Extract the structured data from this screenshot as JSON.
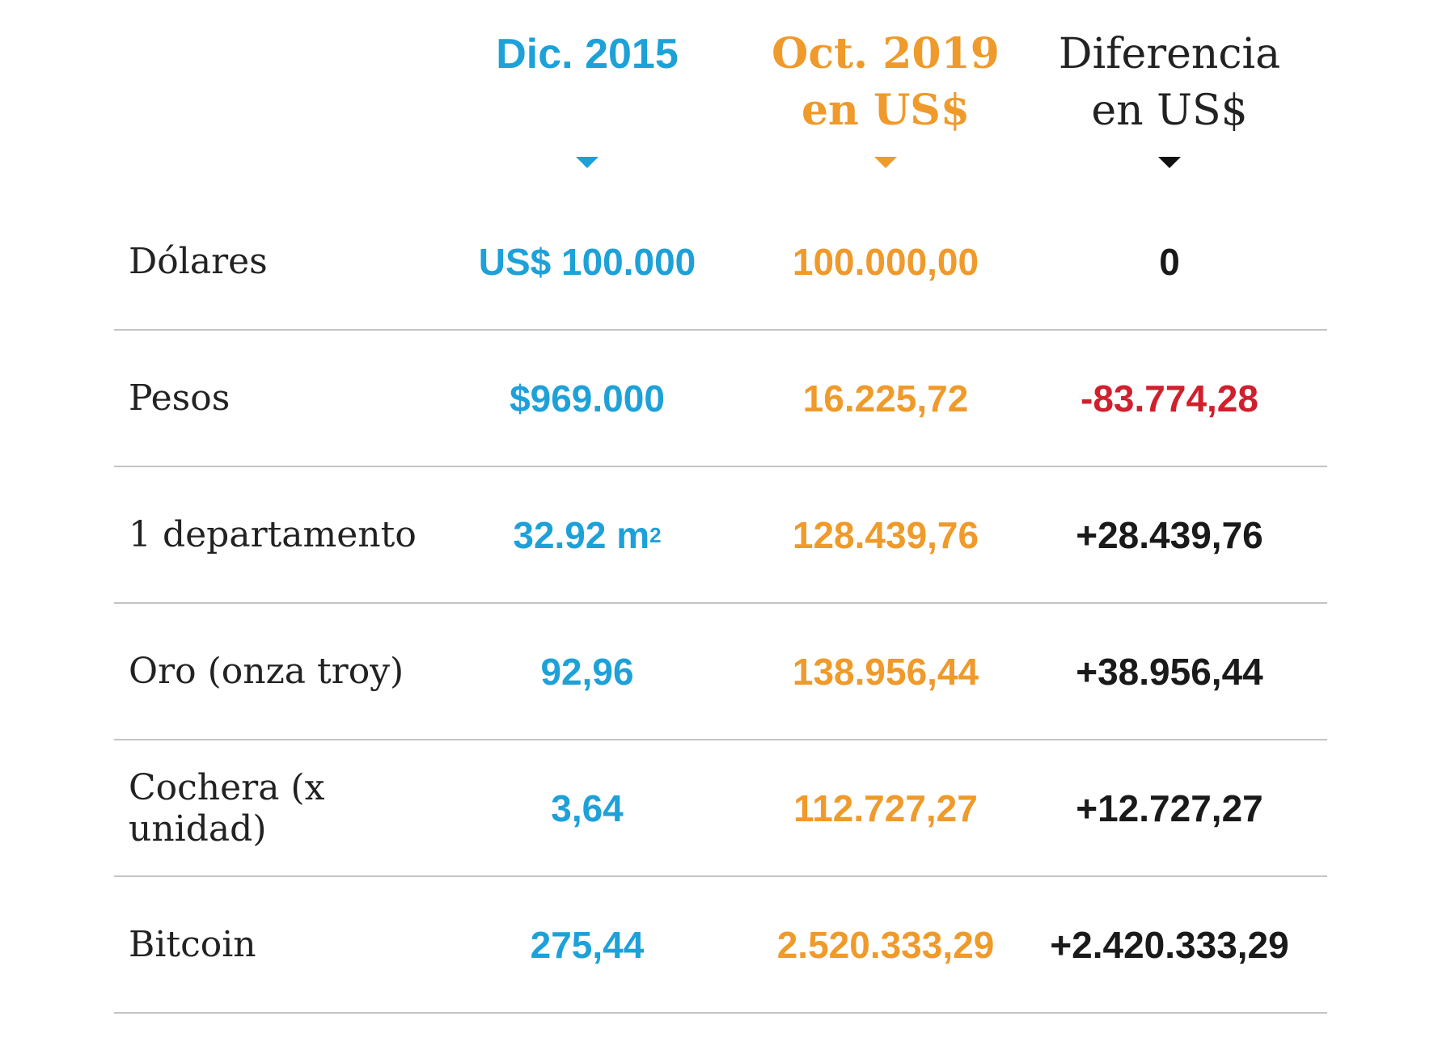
{
  "chart_data": {
    "type": "table",
    "columns": [
      "",
      "Dic. 2015",
      "Oct. 2019 en US$",
      "Diferencia en US$"
    ],
    "header": {
      "col1": "Dic. 2015",
      "col2_line1": "Oct. 2019",
      "col2_line2": "en US$",
      "col3_line1": "Diferencia",
      "col3_line2": "en US$"
    },
    "rows": [
      {
        "label": "Dólares",
        "dic2015": "US$ 100.000",
        "oct2019": "100.000,00",
        "diferencia": "0",
        "negative": false
      },
      {
        "label": "Pesos",
        "dic2015": "$969.000",
        "oct2019": "16.225,72",
        "diferencia": "-83.774,28",
        "negative": true
      },
      {
        "label": "1 departamento",
        "dic2015": "32.92 m",
        "dic2015_sup": "2",
        "oct2019": "128.439,76",
        "diferencia": "+28.439,76",
        "negative": false
      },
      {
        "label": "Oro (onza troy)",
        "dic2015": "92,96",
        "oct2019": "138.956,44",
        "diferencia": "+38.956,44",
        "negative": false
      },
      {
        "label": "Cochera (x unidad)",
        "dic2015": "3,64",
        "oct2019": "112.727,27",
        "diferencia": "+12.727,27",
        "negative": false
      },
      {
        "label": "Bitcoin",
        "dic2015": "275,44",
        "oct2019": "2.520.333,29",
        "diferencia": "+2.420.333,29",
        "negative": false
      }
    ],
    "colors": {
      "dic2015": "#1da1d8",
      "oct2019": "#ef9a2a",
      "diferencia": "#1a1a1a",
      "negative": "#d0202e",
      "divider": "#c4c4c4"
    }
  }
}
